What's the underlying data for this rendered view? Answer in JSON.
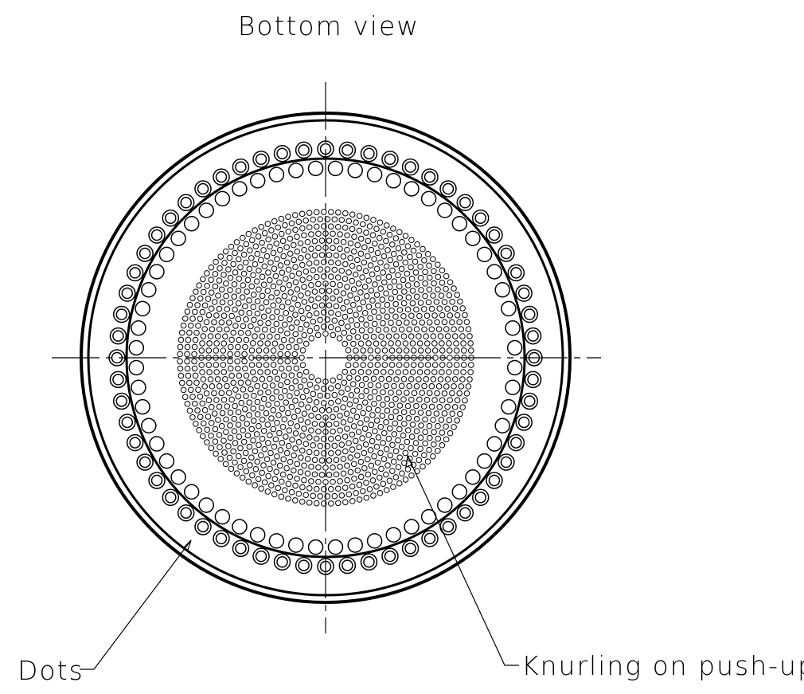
{
  "title": "Bottom view",
  "callouts": [
    {
      "label": "Dots"
    },
    {
      "label": "Knurling on push-up"
    }
  ]
}
